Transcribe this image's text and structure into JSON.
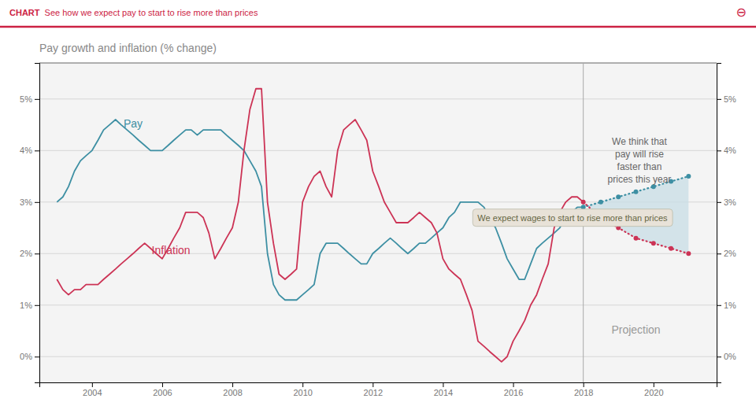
{
  "chart_data": {
    "type": "line",
    "title": "Pay growth and inflation (% change)",
    "header": [
      "CHART",
      "  See how we expect pay to start to rise more than prices",
      "⊖"
    ],
    "xlim": [
      2002.5,
      2021.8
    ],
    "xticks": [
      2004,
      2006,
      2008,
      2010,
      2012,
      2014,
      2016,
      2018,
      2020
    ],
    "ylim": [
      -0.005,
      0.057
    ],
    "yticks": [
      {
        "value": 0.0,
        "label": "0%"
      },
      {
        "value": 0.01,
        "label": "1%"
      },
      {
        "value": 0.02,
        "label": "2%"
      },
      {
        "value": 0.03,
        "label": "3%"
      },
      {
        "value": 0.04,
        "label": "4%"
      },
      {
        "value": 0.05,
        "label": "5%"
      }
    ],
    "y2lim": [
      -0.005,
      0.057
    ],
    "y2ticks": [
      {
        "value": 0.0,
        "label": "0%"
      },
      {
        "value": 0.01,
        "label": "1%"
      },
      {
        "value": 0.02,
        "label": "2%"
      },
      {
        "value": 0.03,
        "label": "3%"
      },
      {
        "value": 0.04,
        "label": "4%"
      },
      {
        "value": 0.05,
        "label": "5%"
      }
    ],
    "grid": true,
    "projection": {
      "start": 2018.0,
      "color": "#c8dde5"
    },
    "series": [
      {
        "color": "#3d8fa3",
        "line_style": "solid",
        "x": [
          2003.0,
          2003.17,
          2003.33,
          2003.5,
          2003.67,
          2003.83,
          2004.0,
          2004.17,
          2004.33,
          2004.5,
          2004.67,
          2004.83,
          2005.0,
          2005.17,
          2005.33,
          2005.5,
          2005.67,
          2005.83,
          2006.0,
          2006.17,
          2006.33,
          2006.5,
          2006.67,
          2006.83,
          2007.0,
          2007.17,
          2007.33,
          2007.5,
          2007.67,
          2007.83,
          2008.0,
          2008.17,
          2008.33,
          2008.5,
          2008.67,
          2008.83,
          2009.0,
          2009.17,
          2009.33,
          2009.5,
          2009.67,
          2009.83,
          2010.0,
          2010.17,
          2010.33,
          2010.5,
          2010.67,
          2010.83,
          2011.0,
          2011.17,
          2011.33,
          2011.5,
          2011.67,
          2011.83,
          2012.0,
          2012.17,
          2012.33,
          2012.5,
          2012.67,
          2012.83,
          2013.0,
          2013.17,
          2013.33,
          2013.5,
          2013.67,
          2013.83,
          2014.0,
          2014.17,
          2014.33,
          2014.5,
          2014.67,
          2014.83,
          2015.0,
          2015.17,
          2015.33,
          2015.5,
          2015.67,
          2015.83,
          2016.0,
          2016.17,
          2016.33,
          2016.5,
          2016.67,
          2016.83,
          2017.0,
          2017.17,
          2017.33,
          2017.5,
          2017.67,
          2017.83,
          2018.0
        ],
        "values": [
          0.03,
          0.031,
          0.033,
          0.036,
          0.038,
          0.039,
          0.04,
          0.042,
          0.044,
          0.045,
          0.046,
          0.045,
          0.044,
          0.043,
          0.042,
          0.041,
          0.04,
          0.04,
          0.04,
          0.041,
          0.042,
          0.043,
          0.044,
          0.044,
          0.043,
          0.044,
          0.044,
          0.044,
          0.044,
          0.043,
          0.042,
          0.041,
          0.04,
          0.038,
          0.036,
          0.033,
          0.02,
          0.014,
          0.012,
          0.011,
          0.011,
          0.011,
          0.012,
          0.013,
          0.014,
          0.02,
          0.022,
          0.022,
          0.022,
          0.021,
          0.02,
          0.019,
          0.018,
          0.018,
          0.02,
          0.021,
          0.022,
          0.023,
          0.022,
          0.021,
          0.02,
          0.021,
          0.022,
          0.022,
          0.023,
          0.024,
          0.025,
          0.027,
          0.028,
          0.03,
          0.03,
          0.03,
          0.03,
          0.029,
          0.027,
          0.025,
          0.022,
          0.019,
          0.017,
          0.015,
          0.015,
          0.018,
          0.021,
          0.022,
          0.023,
          0.024,
          0.025,
          0.027,
          0.028,
          0.029,
          0.029
        ]
      },
      {
        "color": "#cc3355",
        "line_style": "solid",
        "x": [
          2003.0,
          2003.17,
          2003.33,
          2003.5,
          2003.67,
          2003.83,
          2004.0,
          2004.17,
          2004.33,
          2004.5,
          2004.67,
          2004.83,
          2005.0,
          2005.17,
          2005.33,
          2005.5,
          2005.67,
          2005.83,
          2006.0,
          2006.17,
          2006.33,
          2006.5,
          2006.67,
          2006.83,
          2007.0,
          2007.17,
          2007.33,
          2007.5,
          2007.67,
          2007.83,
          2008.0,
          2008.17,
          2008.33,
          2008.5,
          2008.67,
          2008.83,
          2009.0,
          2009.17,
          2009.33,
          2009.5,
          2009.67,
          2009.83,
          2010.0,
          2010.17,
          2010.33,
          2010.5,
          2010.67,
          2010.83,
          2011.0,
          2011.17,
          2011.33,
          2011.5,
          2011.67,
          2011.83,
          2012.0,
          2012.17,
          2012.33,
          2012.5,
          2012.67,
          2012.83,
          2013.0,
          2013.17,
          2013.33,
          2013.5,
          2013.67,
          2013.83,
          2014.0,
          2014.17,
          2014.33,
          2014.5,
          2014.67,
          2014.83,
          2015.0,
          2015.17,
          2015.33,
          2015.5,
          2015.67,
          2015.83,
          2016.0,
          2016.17,
          2016.33,
          2016.5,
          2016.67,
          2016.83,
          2017.0,
          2017.17,
          2017.33,
          2017.5,
          2017.67,
          2017.83,
          2018.0
        ],
        "values": [
          0.015,
          0.013,
          0.012,
          0.013,
          0.013,
          0.014,
          0.014,
          0.014,
          0.015,
          0.016,
          0.017,
          0.018,
          0.019,
          0.02,
          0.021,
          0.022,
          0.021,
          0.02,
          0.019,
          0.021,
          0.023,
          0.025,
          0.028,
          0.028,
          0.028,
          0.027,
          0.024,
          0.019,
          0.021,
          0.023,
          0.025,
          0.03,
          0.04,
          0.048,
          0.052,
          0.052,
          0.03,
          0.022,
          0.016,
          0.015,
          0.016,
          0.017,
          0.03,
          0.033,
          0.035,
          0.036,
          0.033,
          0.031,
          0.04,
          0.044,
          0.045,
          0.046,
          0.044,
          0.042,
          0.036,
          0.033,
          0.03,
          0.028,
          0.026,
          0.026,
          0.026,
          0.027,
          0.028,
          0.027,
          0.026,
          0.024,
          0.019,
          0.017,
          0.016,
          0.015,
          0.012,
          0.009,
          0.003,
          0.002,
          0.001,
          0.0,
          -0.001,
          0.0,
          0.003,
          0.005,
          0.007,
          0.01,
          0.012,
          0.015,
          0.018,
          0.025,
          0.028,
          0.03,
          0.031,
          0.031,
          0.03
        ]
      },
      {
        "color": "#3d8fa3",
        "line_style": "dotted",
        "marker": "circle",
        "x": [
          2018.0,
          2018.5,
          2019.0,
          2019.5,
          2020.0,
          2020.5,
          2021.0
        ],
        "values": [
          0.029,
          0.03,
          0.031,
          0.032,
          0.033,
          0.034,
          0.035
        ]
      },
      {
        "color": "#cc3355",
        "line_style": "dotted",
        "marker": "circle",
        "x": [
          2018.0,
          2018.5,
          2019.0,
          2019.5,
          2020.0,
          2020.5,
          2021.0
        ],
        "values": [
          0.03,
          0.027,
          0.025,
          0.023,
          0.022,
          0.021,
          0.02
        ]
      }
    ],
    "annotations": [
      {
        "text": "Pay",
        "x": 2004.9,
        "y": 0.044,
        "color": "#3d8fa3"
      },
      {
        "text": "Inflation",
        "x": 2005.7,
        "y": 0.0195,
        "color": "#cc3355"
      },
      {
        "text": "Projection",
        "x": 2019.5,
        "y": 0.004
      },
      {
        "text": "We think that\npay will rise\nfaster than\nprices this year",
        "x": 2019.6,
        "y": 0.043
      },
      {
        "text": "We expect wages to start to rise more than prices",
        "x": 2014.85,
        "y": 0.0268,
        "box": {
          "fill": "#e8e2d8",
          "edge": "#bbbbaa"
        }
      }
    ]
  }
}
